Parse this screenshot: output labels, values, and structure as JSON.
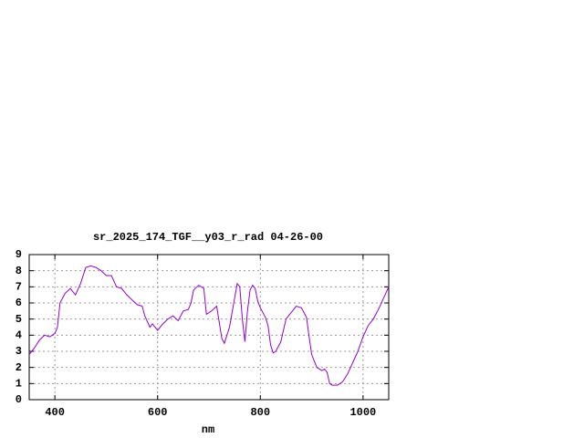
{
  "chart_data": {
    "type": "line",
    "title": "sr_2025_174_TGF__y03_r_rad 04-26-00",
    "x_label": "nm",
    "x": [
      350,
      360,
      370,
      380,
      390,
      400,
      405,
      410,
      420,
      430,
      440,
      450,
      460,
      470,
      480,
      490,
      500,
      510,
      520,
      530,
      540,
      550,
      560,
      570,
      575,
      585,
      590,
      600,
      610,
      620,
      630,
      640,
      650,
      660,
      665,
      670,
      680,
      690,
      695,
      705,
      715,
      720,
      725,
      730,
      740,
      750,
      755,
      760,
      765,
      770,
      775,
      780,
      785,
      790,
      795,
      800,
      810,
      815,
      820,
      825,
      830,
      840,
      850,
      860,
      870,
      880,
      890,
      895,
      900,
      910,
      920,
      925,
      930,
      935,
      940,
      950,
      960,
      970,
      980,
      990,
      1000,
      1010,
      1020,
      1030,
      1040,
      1050
    ],
    "series": [
      {
        "color": "#9400d3",
        "values": [
          2.8,
          3.2,
          3.7,
          4.0,
          3.9,
          4.1,
          4.5,
          6.0,
          6.6,
          6.9,
          6.5,
          7.2,
          8.2,
          8.3,
          8.2,
          8.0,
          7.7,
          7.7,
          7.0,
          6.9,
          6.5,
          6.2,
          5.9,
          5.8,
          5.2,
          4.5,
          4.7,
          4.3,
          4.7,
          5.0,
          5.2,
          4.9,
          5.5,
          5.6,
          6.0,
          6.8,
          7.1,
          6.9,
          5.3,
          5.5,
          5.8,
          4.8,
          3.8,
          3.5,
          4.5,
          6.3,
          7.2,
          7.0,
          5.0,
          3.6,
          5.5,
          6.8,
          7.1,
          6.9,
          6.1,
          5.7,
          5.1,
          4.6,
          3.4,
          2.9,
          3.0,
          3.6,
          5.0,
          5.4,
          5.8,
          5.7,
          5.1,
          3.9,
          2.8,
          2.0,
          1.8,
          1.9,
          1.7,
          1.0,
          0.9,
          0.9,
          1.1,
          1.6,
          2.3,
          3.0,
          3.9,
          4.6,
          5.0,
          5.6,
          6.3,
          7.0
        ]
      }
    ],
    "xlim": [
      350,
      1050
    ],
    "xticks": [
      400,
      600,
      800,
      1000
    ],
    "ylim": [
      0,
      9
    ],
    "yticks": [
      0,
      1,
      2,
      3,
      4,
      5,
      6,
      7,
      8,
      9
    ],
    "grid": true
  }
}
